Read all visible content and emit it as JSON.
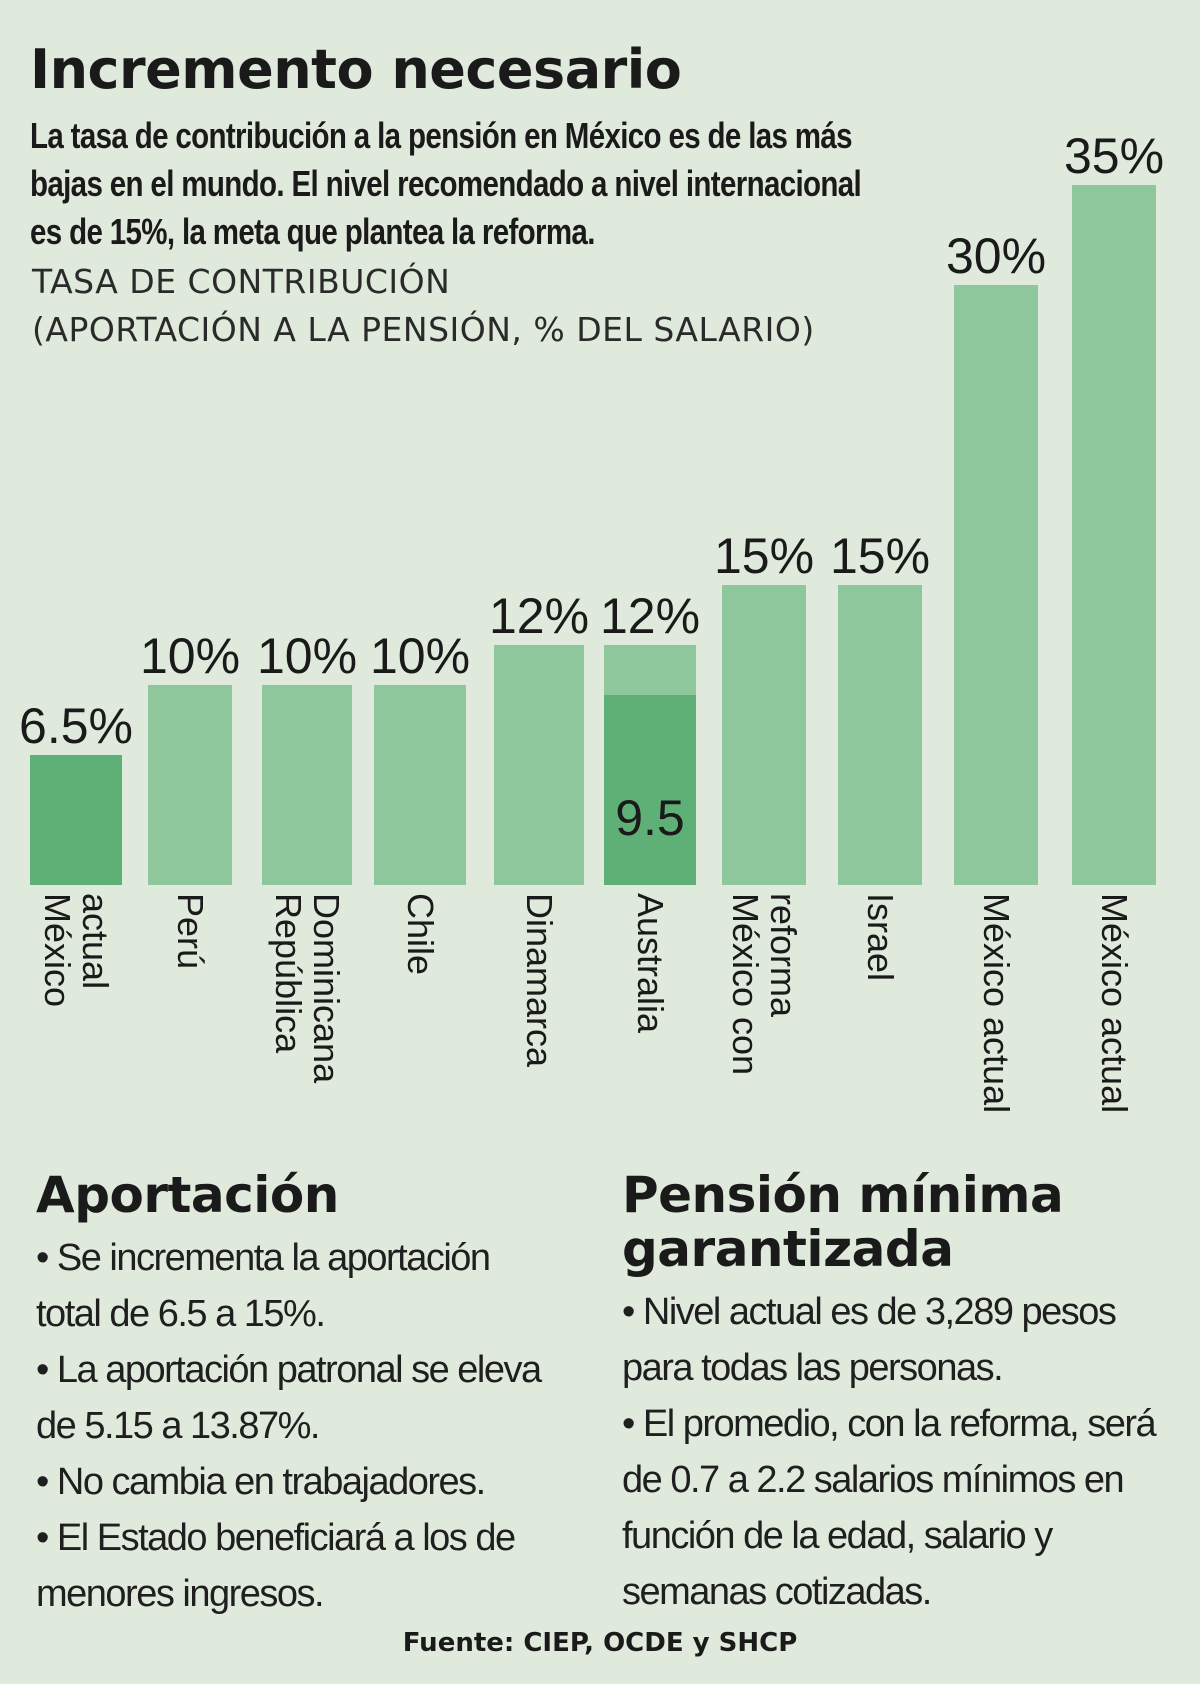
{
  "title": "Incremento necesario",
  "subtitle": "La tasa de contribución a la pensión en México es de las más bajas en el mundo. El nivel recomendado a nivel internacional es de 15%, la meta que plantea la reforma.",
  "axis_caption_line1": "TASA DE CONTRIBUCIÓN",
  "axis_caption_line2": "(APORTACIÓN A LA PENSIÓN, % DEL SALARIO)",
  "colors": {
    "background": "#dfeadc",
    "bar": "#8ec79c",
    "bar_highlight": "#5fb077"
  },
  "chart_data": {
    "type": "bar",
    "title": "",
    "ylabel": "TASA DE CONTRIBUCIÓN (APORTACIÓN A LA PENSIÓN, % DEL SALARIO)",
    "ylim": [
      0,
      35
    ],
    "grid": false,
    "categories": [
      "México actual",
      "Perú",
      "República Dominicana",
      "Chile",
      "Dinamarca",
      "Australia",
      "México con reforma",
      "Israel",
      "México actual",
      "México actual"
    ],
    "category_lines": [
      [
        "México",
        "actual"
      ],
      [
        "Perú"
      ],
      [
        "República",
        "Dominicana"
      ],
      [
        "Chile"
      ],
      [
        "Dinamarca"
      ],
      [
        "Australia"
      ],
      [
        "México con",
        "reforma"
      ],
      [
        "Israel"
      ],
      [
        "México actual"
      ],
      [
        "México actual"
      ]
    ],
    "values": [
      6.5,
      10,
      10,
      10,
      12,
      12,
      15,
      15,
      30,
      35
    ],
    "value_labels": [
      "6.5%",
      "10%",
      "10%",
      "10%",
      "12%",
      "12%",
      "15%",
      "15%",
      "30%",
      "35%"
    ],
    "highlight": [
      true,
      false,
      false,
      false,
      false,
      false,
      false,
      false,
      false,
      false
    ],
    "inner_segment": {
      "index": 5,
      "value": 9.5,
      "label": "9.5"
    }
  },
  "sections": {
    "left": {
      "heading": "Aportación",
      "items": [
        "Se incrementa la aportación total de 6.5 a 15%.",
        "La aportación patronal se eleva de 5.15 a 13.87%.",
        "No cambia en trabajadores.",
        "El Estado beneficiará a los de menores ingresos."
      ]
    },
    "right": {
      "heading": "Pensión mínima garantizada",
      "items": [
        "Nivel actual es de 3,289 pesos para todas las personas.",
        "El promedio, con la reforma, será de 0.7 a 2.2 salarios mínimos en función de la edad, salario y semanas cotizadas."
      ]
    }
  },
  "source": "Fuente: CIEP, OCDE y SHCP"
}
